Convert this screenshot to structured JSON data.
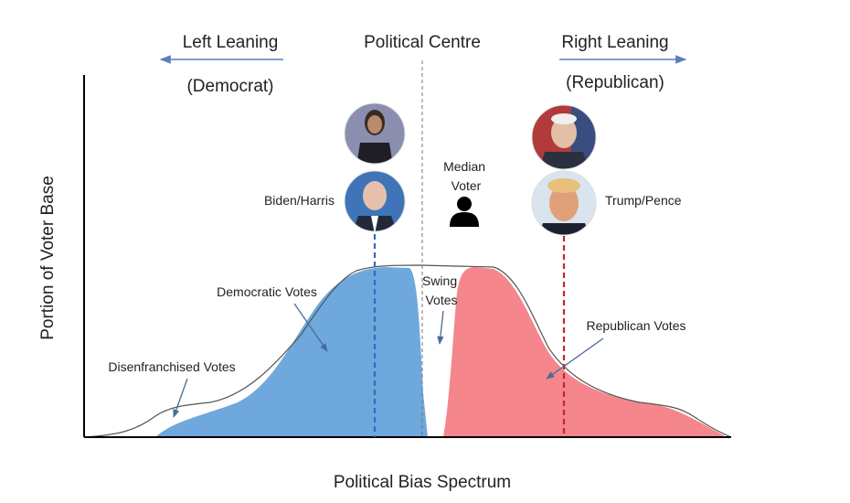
{
  "header": {
    "left": {
      "title": "Left Leaning",
      "subtitle": "(Democrat)"
    },
    "centre": "Political Centre",
    "right": {
      "title": "Right Leaning",
      "subtitle": "(Republican)"
    }
  },
  "candidates": {
    "democrat": "Biden/Harris",
    "republican": "Trump/Pence"
  },
  "median_voter": [
    "Median",
    "Voter"
  ],
  "regions": {
    "democratic": "Democratic Votes",
    "swing": [
      "Swing",
      "Votes"
    ],
    "republican": "Republican Votes",
    "disenfranchised": "Disenfranchised Votes"
  },
  "axes": {
    "y": "Portion of Voter Base",
    "x": "Political Bias Spectrum"
  }
}
